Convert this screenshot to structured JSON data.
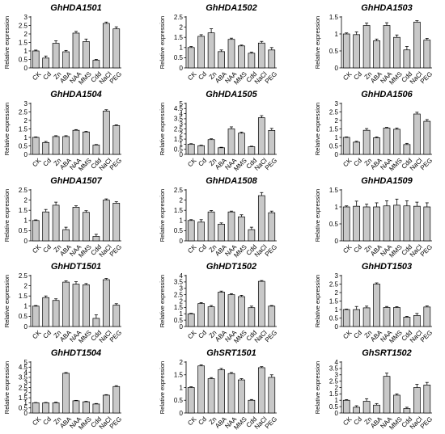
{
  "chart_data": [
    {
      "type": "bar",
      "title": "GhHDA1501",
      "ylabel": "Relative expression",
      "ylim": [
        0,
        3
      ],
      "yticks": [
        "0",
        "0.5",
        "1",
        "1.5",
        "2",
        "2.5",
        "3"
      ],
      "categories": [
        "CK",
        "Cd",
        "Zn",
        "ABA",
        "NAA",
        "MMS",
        "Cdd",
        "NaCl",
        "PEG"
      ],
      "values": [
        1.0,
        0.58,
        1.45,
        0.95,
        2.05,
        1.55,
        0.45,
        2.62,
        2.3
      ],
      "errors": [
        0.05,
        0.12,
        0.15,
        0.08,
        0.1,
        0.15,
        0.05,
        0.08,
        0.12
      ]
    },
    {
      "type": "bar",
      "title": "GhHDA1502",
      "ylabel": "Relative expression",
      "ylim": [
        0,
        2.5
      ],
      "yticks": [
        "0",
        "0.5",
        "1",
        "1.5",
        "2",
        "2.5"
      ],
      "categories": [
        "CK",
        "Cd",
        "Zn",
        "ABA",
        "NAA",
        "MMS",
        "Cdd",
        "NaCl",
        "PEG"
      ],
      "values": [
        1.0,
        1.55,
        1.72,
        0.8,
        1.4,
        1.08,
        0.72,
        1.22,
        0.88
      ],
      "errors": [
        0.05,
        0.08,
        0.2,
        0.08,
        0.06,
        0.04,
        0.05,
        0.08,
        0.12
      ]
    },
    {
      "type": "bar",
      "title": "GhHDA1503",
      "ylabel": "Relative expression",
      "ylim": [
        0,
        1.5
      ],
      "yticks": [
        "0",
        "0.5",
        "1",
        "1.5"
      ],
      "categories": [
        "CK",
        "Cd",
        "Zn",
        "ABA",
        "NAA",
        "MMS",
        "Cdd",
        "NaCl",
        "PEG"
      ],
      "values": [
        1.0,
        0.98,
        1.25,
        0.8,
        1.25,
        0.9,
        0.53,
        1.35,
        0.82
      ],
      "errors": [
        0.03,
        0.08,
        0.07,
        0.05,
        0.08,
        0.07,
        0.1,
        0.04,
        0.05
      ]
    },
    {
      "type": "bar",
      "title": "GhHDA1504",
      "ylabel": "Relative expression",
      "ylim": [
        0,
        3
      ],
      "yticks": [
        "0",
        "0.5",
        "1",
        "1.5",
        "2",
        "2.5",
        "3"
      ],
      "categories": [
        "CK",
        "Cd",
        "Zn",
        "ABA",
        "NAA",
        "MMS",
        "Cdd",
        "NaCl",
        "PEG"
      ],
      "values": [
        1.0,
        0.7,
        1.05,
        1.05,
        1.42,
        1.32,
        0.55,
        2.55,
        1.7
      ],
      "errors": [
        0.03,
        0.06,
        0.05,
        0.05,
        0.04,
        0.04,
        0.03,
        0.08,
        0.04
      ]
    },
    {
      "type": "bar",
      "title": "GhHDA1505",
      "ylabel": "Relative expression",
      "ylim": [
        0,
        5
      ],
      "yticks": [
        "0",
        "0.5",
        "1",
        "1.5",
        "2",
        "2.5",
        "3",
        "3.5",
        "4",
        "4.5",
        "5"
      ],
      "categories": [
        "CK",
        "Cd",
        "Zn",
        "ABA",
        "NAA",
        "MMS",
        "Cdd",
        "NaCl",
        "PEG"
      ],
      "values": [
        1.0,
        0.85,
        1.45,
        0.65,
        2.5,
        2.08,
        0.75,
        3.6,
        2.35
      ],
      "errors": [
        0.05,
        0.05,
        0.08,
        0.05,
        0.2,
        0.1,
        0.05,
        0.2,
        0.2
      ]
    },
    {
      "type": "bar",
      "title": "GhHDA1506",
      "ylabel": "Relative expression",
      "ylim": [
        0,
        3
      ],
      "yticks": [
        "0",
        "0.5",
        "1",
        "1.5",
        "2",
        "2.5",
        "3"
      ],
      "categories": [
        "CK",
        "Cd",
        "Zn",
        "ABA",
        "NAA",
        "MMS",
        "Cdd",
        "NaCl",
        "PEG"
      ],
      "values": [
        1.0,
        0.72,
        1.42,
        0.98,
        1.55,
        1.48,
        0.58,
        2.38,
        1.95
      ],
      "errors": [
        0.03,
        0.05,
        0.1,
        0.05,
        0.04,
        0.07,
        0.07,
        0.1,
        0.1
      ]
    },
    {
      "type": "bar",
      "title": "GhHDA1507",
      "ylabel": "Relative expression",
      "ylim": [
        0,
        2.5
      ],
      "yticks": [
        "0",
        "0.5",
        "1",
        "1.5",
        "2",
        "2.5"
      ],
      "categories": [
        "CK",
        "Cd",
        "Zn",
        "ABA",
        "NAA",
        "MMS",
        "Cdd",
        "NaCl",
        "PEG"
      ],
      "values": [
        1.0,
        1.42,
        1.75,
        0.55,
        1.65,
        1.4,
        0.22,
        2.0,
        1.85
      ],
      "errors": [
        0.03,
        0.12,
        0.15,
        0.12,
        0.07,
        0.08,
        0.1,
        0.06,
        0.07
      ]
    },
    {
      "type": "bar",
      "title": "GhHDA1508",
      "ylabel": "Relative expression",
      "ylim": [
        0,
        2.5
      ],
      "yticks": [
        "0",
        "0.5",
        "1",
        "1.5",
        "2",
        "2.5"
      ],
      "categories": [
        "CK",
        "Cd",
        "Zn",
        "ABA",
        "NAA",
        "MMS",
        "Cdd",
        "NaCl",
        "PEG"
      ],
      "values": [
        1.0,
        0.92,
        1.42,
        0.82,
        1.42,
        1.18,
        0.55,
        2.22,
        1.38
      ],
      "errors": [
        0.04,
        0.12,
        0.07,
        0.06,
        0.04,
        0.1,
        0.12,
        0.15,
        0.08
      ]
    },
    {
      "type": "bar",
      "title": "GhHDA1509",
      "ylabel": "Relative expression",
      "ylim": [
        0,
        1.5
      ],
      "yticks": [
        "0",
        "0.5",
        "1",
        "1.5"
      ],
      "categories": [
        "CK",
        "Cd",
        "Zn",
        "ABA",
        "NAA",
        "MMS",
        "Cdd",
        "NaCl",
        "PEG"
      ],
      "values": [
        1.0,
        1.02,
        1.0,
        1.0,
        1.03,
        1.05,
        1.03,
        1.02,
        1.0
      ],
      "errors": [
        0.03,
        0.15,
        0.08,
        0.12,
        0.15,
        0.18,
        0.15,
        0.12,
        0.12
      ]
    },
    {
      "type": "bar",
      "title": "GhHDT1501",
      "ylabel": "Relative expression",
      "ylim": [
        0,
        2.5
      ],
      "yticks": [
        "0",
        "0.5",
        "1",
        "1.5",
        "2",
        "2.5"
      ],
      "categories": [
        "CK",
        "Cd",
        "Zn",
        "ABA",
        "NAA",
        "MMS",
        "Cdd",
        "NaCl",
        "PEG"
      ],
      "values": [
        1.0,
        1.42,
        1.28,
        2.18,
        2.08,
        2.05,
        0.4,
        2.3,
        1.05
      ],
      "errors": [
        0.03,
        0.08,
        0.08,
        0.06,
        0.12,
        0.06,
        0.17,
        0.06,
        0.07
      ]
    },
    {
      "type": "bar",
      "title": "GhHDT1502",
      "ylabel": "Relative expression",
      "ylim": [
        0,
        4
      ],
      "yticks": [
        "0",
        "0.5",
        "1",
        "1.5",
        "2",
        "2.5",
        "3",
        "3.5",
        "4"
      ],
      "categories": [
        "CK",
        "Cd",
        "Zn",
        "ABA",
        "NAA",
        "MMS",
        "Cdd",
        "NaCl",
        "PEG"
      ],
      "values": [
        1.0,
        1.8,
        1.55,
        2.7,
        2.5,
        2.35,
        1.48,
        3.55,
        1.6
      ],
      "errors": [
        0.04,
        0.08,
        0.1,
        0.08,
        0.08,
        0.1,
        0.12,
        0.06,
        0.05
      ]
    },
    {
      "type": "bar",
      "title": "GhHDT1503",
      "ylabel": "Relative expression",
      "ylim": [
        0,
        3
      ],
      "yticks": [
        "0",
        "0.5",
        "1",
        "1.5",
        "2",
        "2.5",
        "3"
      ],
      "categories": [
        "CK",
        "Cd",
        "Zn",
        "ABA",
        "NAA",
        "MMS",
        "Cdd",
        "NaCl",
        "PEG"
      ],
      "values": [
        1.0,
        1.0,
        1.1,
        2.5,
        1.12,
        1.12,
        0.55,
        0.65,
        1.15
      ],
      "errors": [
        0.03,
        0.18,
        0.1,
        0.07,
        0.06,
        0.05,
        0.05,
        0.12,
        0.06
      ]
    },
    {
      "type": "bar",
      "title": "GhHDT1504",
      "ylabel": "Relative expression",
      "ylim": [
        0,
        5
      ],
      "yticks": [
        "0",
        "0.5",
        "1",
        "1.5",
        "2",
        "2.5",
        "3",
        "3.5",
        "4",
        "4.5",
        "5"
      ],
      "categories": [
        "CK",
        "Cd",
        "Zn",
        "ABA",
        "NAA",
        "MMS",
        "Cdd",
        "NaCl",
        "PEG"
      ],
      "values": [
        1.0,
        1.0,
        1.0,
        3.9,
        1.2,
        1.1,
        0.88,
        1.75,
        2.6
      ],
      "errors": [
        0.03,
        0.04,
        0.06,
        0.07,
        0.04,
        0.05,
        0.05,
        0.05,
        0.08
      ]
    },
    {
      "type": "bar",
      "title": "GhSRT1501",
      "ylabel": "Relative expression",
      "ylim": [
        0,
        2
      ],
      "yticks": [
        "0",
        "0.5",
        "1",
        "1.5",
        "2"
      ],
      "categories": [
        "CK",
        "Cd",
        "Zn",
        "ABA",
        "NAA",
        "MMS",
        "Cdd",
        "NaCl",
        "PEG"
      ],
      "values": [
        1.0,
        1.85,
        1.35,
        1.7,
        1.55,
        1.3,
        0.5,
        1.78,
        1.4
      ],
      "errors": [
        0.03,
        0.04,
        0.04,
        0.05,
        0.04,
        0.05,
        0.03,
        0.04,
        0.1
      ]
    },
    {
      "type": "bar",
      "title": "GhSRT1502",
      "ylabel": "Relative expression",
      "ylim": [
        0,
        4
      ],
      "yticks": [
        "0",
        "0.5",
        "1",
        "1.5",
        "2",
        "2.5",
        "3",
        "3.5",
        "4"
      ],
      "categories": [
        "CK",
        "Cd",
        "Zn",
        "ABA",
        "NAA",
        "MMS",
        "Cdd",
        "NaCl",
        "PEG"
      ],
      "values": [
        1.0,
        0.45,
        0.92,
        0.62,
        2.88,
        1.4,
        0.35,
        2.0,
        2.2
      ],
      "errors": [
        0.05,
        0.12,
        0.2,
        0.12,
        0.25,
        0.1,
        0.1,
        0.25,
        0.2
      ]
    }
  ],
  "style": {
    "bar_fill": "#c8c8c8",
    "bar_stroke": "#000000",
    "axis_color": "#000000",
    "text_color": "#000000"
  }
}
